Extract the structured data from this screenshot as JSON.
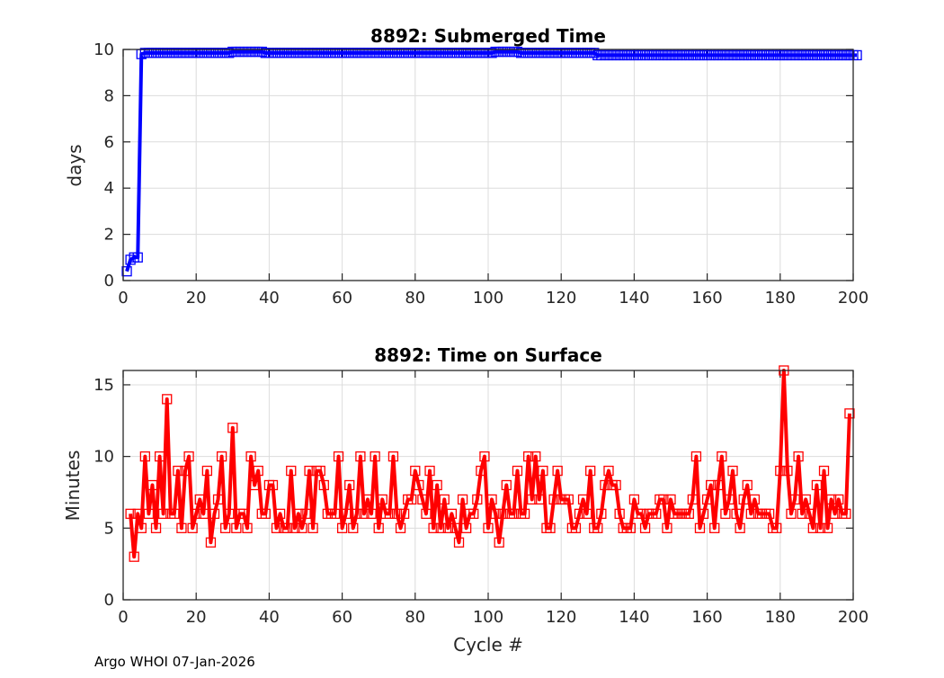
{
  "footer": "Argo WHOI 07-Jan-2026",
  "chart_data": [
    {
      "type": "line",
      "title": "8892: Submerged Time",
      "xlabel": "",
      "ylabel": "days",
      "xlim": [
        0,
        200
      ],
      "ylim": [
        0,
        10
      ],
      "xticks": [
        "0",
        "20",
        "40",
        "60",
        "80",
        "100",
        "120",
        "140",
        "160",
        "180",
        "200"
      ],
      "yticks": [
        "0",
        "2",
        "4",
        "6",
        "8",
        "10"
      ],
      "grid": true,
      "color": "#0000ff",
      "marker": "square",
      "x_start": 1,
      "values": [
        0.4,
        0.9,
        1.0,
        1.0,
        9.8,
        9.85,
        9.85,
        9.85,
        9.85,
        9.85,
        9.85,
        9.85,
        9.85,
        9.85,
        9.85,
        9.85,
        9.85,
        9.85,
        9.85,
        9.85,
        9.85,
        9.85,
        9.85,
        9.85,
        9.85,
        9.85,
        9.85,
        9.85,
        9.85,
        9.9,
        9.9,
        9.9,
        9.9,
        9.9,
        9.9,
        9.9,
        9.9,
        9.9,
        9.85,
        9.85,
        9.85,
        9.85,
        9.85,
        9.85,
        9.85,
        9.85,
        9.85,
        9.85,
        9.85,
        9.85,
        9.85,
        9.85,
        9.85,
        9.85,
        9.85,
        9.85,
        9.85,
        9.85,
        9.85,
        9.85,
        9.85,
        9.85,
        9.85,
        9.85,
        9.85,
        9.85,
        9.85,
        9.85,
        9.85,
        9.85,
        9.85,
        9.85,
        9.85,
        9.85,
        9.85,
        9.85,
        9.85,
        9.85,
        9.85,
        9.85,
        9.85,
        9.85,
        9.85,
        9.85,
        9.85,
        9.85,
        9.85,
        9.85,
        9.85,
        9.85,
        9.85,
        9.85,
        9.85,
        9.85,
        9.85,
        9.85,
        9.85,
        9.85,
        9.85,
        9.85,
        9.85,
        9.9,
        9.9,
        9.9,
        9.9,
        9.9,
        9.9,
        9.9,
        9.85,
        9.85,
        9.85,
        9.85,
        9.85,
        9.85,
        9.85,
        9.85,
        9.85,
        9.85,
        9.85,
        9.85,
        9.85,
        9.85,
        9.85,
        9.85,
        9.85,
        9.85,
        9.85,
        9.85,
        9.85,
        9.75,
        9.75,
        9.75,
        9.75,
        9.75,
        9.75,
        9.75,
        9.75,
        9.75,
        9.75,
        9.75,
        9.75,
        9.75,
        9.75,
        9.75,
        9.75,
        9.75,
        9.75,
        9.75,
        9.75,
        9.75,
        9.75,
        9.75,
        9.75,
        9.75,
        9.75,
        9.75,
        9.75,
        9.75,
        9.75,
        9.75,
        9.75,
        9.75,
        9.75,
        9.75,
        9.75,
        9.75,
        9.75,
        9.75,
        9.75,
        9.75,
        9.75,
        9.75,
        9.75,
        9.75,
        9.75,
        9.75,
        9.75,
        9.75,
        9.75,
        9.75,
        9.75,
        9.75,
        9.75,
        9.75,
        9.75,
        9.75,
        9.75,
        9.75,
        9.75,
        9.75,
        9.75,
        9.75,
        9.75,
        9.75,
        9.75,
        9.75,
        9.75,
        9.75,
        9.75,
        9.75,
        9.75
      ]
    },
    {
      "type": "line",
      "title": "8892: Time on Surface",
      "xlabel": "Cycle #",
      "ylabel": "Minutes",
      "xlim": [
        0,
        200
      ],
      "ylim": [
        0,
        16
      ],
      "xticks": [
        "0",
        "20",
        "40",
        "60",
        "80",
        "100",
        "120",
        "140",
        "160",
        "180",
        "200"
      ],
      "yticks": [
        "0",
        "5",
        "10",
        "15"
      ],
      "grid": true,
      "color": "#ff0000",
      "marker": "square",
      "x_start": 2,
      "values": [
        6,
        3,
        6,
        5,
        10,
        6,
        8,
        5,
        10,
        6,
        14,
        6,
        6,
        9,
        5,
        9,
        10,
        5,
        6,
        7,
        6,
        9,
        4,
        6,
        7,
        10,
        5,
        6,
        12,
        5,
        6,
        6,
        5,
        10,
        8,
        9,
        6,
        6,
        8,
        8,
        5,
        6,
        5,
        5,
        9,
        5,
        6,
        5,
        6,
        9,
        5,
        9,
        9,
        8,
        6,
        6,
        6,
        10,
        5,
        6,
        8,
        5,
        6,
        10,
        6,
        7,
        6,
        10,
        5,
        7,
        6,
        6,
        10,
        6,
        5,
        6,
        7,
        7,
        9,
        8,
        7,
        6,
        9,
        5,
        8,
        5,
        7,
        5,
        6,
        5,
        4,
        7,
        5,
        6,
        6,
        7,
        9,
        10,
        5,
        7,
        6,
        4,
        6,
        8,
        6,
        6,
        9,
        6,
        6,
        10,
        7,
        10,
        7,
        9,
        5,
        5,
        7,
        9,
        7,
        7,
        7,
        5,
        5,
        6,
        7,
        6,
        9,
        5,
        5,
        6,
        8,
        9,
        8,
        8,
        6,
        5,
        5,
        5,
        7,
        6,
        6,
        5,
        6,
        6,
        6,
        7,
        7,
        5,
        7,
        6,
        6,
        6,
        6,
        6,
        7,
        10,
        5,
        6,
        7,
        8,
        5,
        8,
        10,
        6,
        7,
        9,
        6,
        5,
        7,
        8,
        6,
        7,
        6,
        6,
        6,
        6,
        5,
        5,
        9,
        16,
        9,
        6,
        7,
        10,
        6,
        7,
        6,
        5,
        8,
        5,
        9,
        5,
        7,
        6,
        7,
        6,
        6,
        13
      ]
    }
  ]
}
